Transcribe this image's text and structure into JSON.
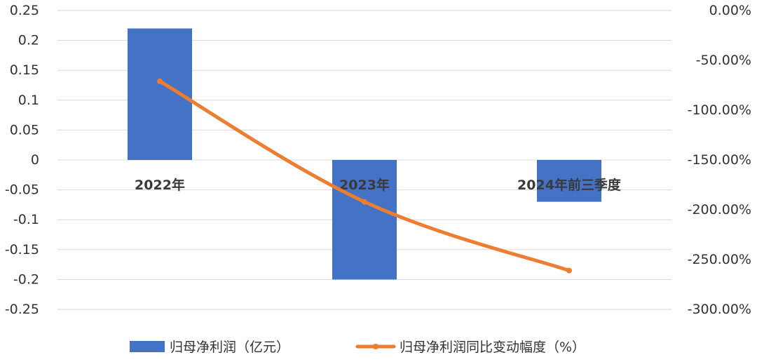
{
  "chart_data": {
    "type": "bar+line",
    "categories": [
      "2022年",
      "2023年",
      "2024年前三季度"
    ],
    "series": [
      {
        "name": "归母净利润（亿元）",
        "type": "bar",
        "axis": "left",
        "color": "#4472C4",
        "values": [
          0.22,
          -0.2,
          -0.07
        ]
      },
      {
        "name": "归母净利润同比变动幅度（%）",
        "type": "line",
        "axis": "right",
        "color": "#ED7D31",
        "values": [
          -71.0,
          -192.0,
          -261.0
        ]
      }
    ],
    "y_left": {
      "ylim": [
        -0.25,
        0.25
      ],
      "ticks": [
        "0.25",
        "0.2",
        "0.15",
        "0.1",
        "0.05",
        "0",
        "-0.05",
        "-0.1",
        "-0.15",
        "-0.2",
        "-0.25"
      ]
    },
    "y_right": {
      "ylim": [
        -300,
        0
      ],
      "ticks": [
        "0.00%",
        "-50.00%",
        "-100.00%",
        "-150.00%",
        "-200.00%",
        "-250.00%",
        "-300.00%"
      ]
    },
    "grid": true,
    "legend_position": "bottom"
  }
}
